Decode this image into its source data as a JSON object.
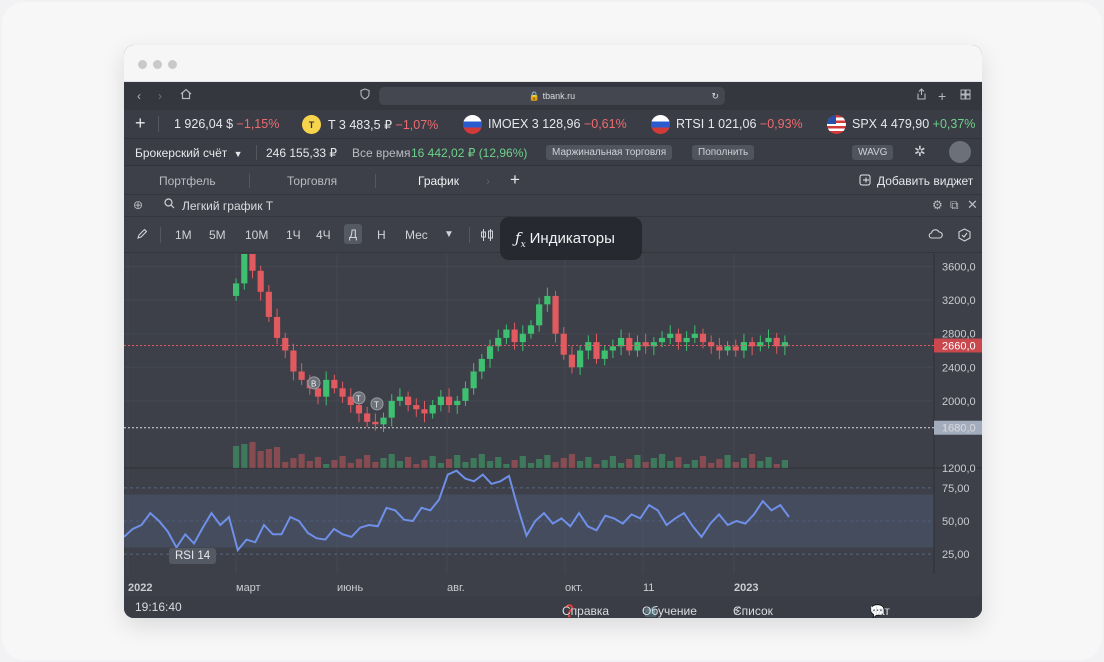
{
  "browser": {
    "url": "tbank.ru"
  },
  "ticker": [
    {
      "name": "",
      "price": "1 926,04 $",
      "change": "−1,15%",
      "dir": "neg"
    },
    {
      "name": "T",
      "price": "3 483,5 ₽",
      "change": "−1,07%",
      "dir": "neg"
    },
    {
      "name": "IMOEX",
      "price": "3 128,96",
      "change": "−0,61%",
      "dir": "neg"
    },
    {
      "name": "RTSI",
      "price": "1 021,06",
      "change": "−0,93%",
      "dir": "neg"
    },
    {
      "name": "SPX",
      "price": "4 479,90",
      "change": "+0,37%",
      "dir": "pos"
    }
  ],
  "account": {
    "name": "Брокерский счёт",
    "balance": "246 155,33 ₽",
    "period_label": "Все время",
    "profit": "16 442,02 ₽ (12,96%)",
    "margin_btn": "Маржинальная торговля",
    "topup_btn": "Пополнить",
    "wavg": "WAVG"
  },
  "tabs": {
    "items": [
      "Портфель",
      "Торговля",
      "График"
    ],
    "active": "График",
    "add_widget": "Добавить виджет"
  },
  "widget": {
    "title": "Легкий график Т"
  },
  "timeframes": {
    "items": [
      "1М",
      "5М",
      "10М",
      "1Ч",
      "4Ч",
      "Д",
      "Н",
      "Мес"
    ],
    "selected": "Д"
  },
  "tooltip": {
    "text": "Индикаторы"
  },
  "chart_data": [
    {
      "type": "candlestick",
      "title": "",
      "ylim": [
        1200,
        3750
      ],
      "y_ticks": [
        "3600,0",
        "3200,0",
        "2800,0",
        "2400,0",
        "2000,0",
        "1680,0",
        "1200,0"
      ],
      "x_ticks": [
        "2022",
        "март",
        "июнь",
        "авг.",
        "окт.",
        "11",
        "2023"
      ],
      "last_price_label": "2660,0",
      "last_price": 2660,
      "crosshair_label": "1680,0",
      "crosshair_price": 1680,
      "markers": [
        "B",
        "T",
        "T"
      ],
      "series": [
        {
          "name": "close",
          "values": [
            3400,
            3750,
            3550,
            3300,
            3000,
            2750,
            2600,
            2350,
            2250,
            2150,
            2050,
            2250,
            2150,
            2050,
            1950,
            1850,
            1750,
            1720,
            1800,
            2000,
            2050,
            1950,
            1900,
            1850,
            1950,
            2050,
            1950,
            2000,
            2150,
            2350,
            2500,
            2650,
            2750,
            2850,
            2700,
            2800,
            2900,
            3150,
            3250,
            2800,
            2550,
            2400,
            2600,
            2700,
            2500,
            2600,
            2650,
            2750,
            2600,
            2700,
            2650,
            2700,
            2750,
            2800,
            2700,
            2750,
            2800,
            2700,
            2650,
            2600,
            2650,
            2600,
            2700,
            2650,
            2700,
            2750,
            2650,
            2700
          ]
        }
      ]
    },
    {
      "type": "line",
      "title": "",
      "ylim": [
        10,
        90
      ],
      "y_ticks": [
        "75,00",
        "50,00",
        "25,00"
      ],
      "series": [
        {
          "name": "RSI 14",
          "values": [
            38,
            44,
            47,
            56,
            50,
            42,
            30,
            40,
            33,
            45,
            56,
            47,
            53,
            28,
            36,
            34,
            47,
            40,
            40,
            53,
            50,
            41,
            37,
            36,
            44,
            40,
            38,
            45,
            47,
            46,
            60,
            58,
            51,
            50,
            60,
            58,
            66,
            85,
            88,
            82,
            80,
            85,
            78,
            80,
            84,
            60,
            39,
            50,
            56,
            48,
            52,
            46,
            56,
            46,
            43,
            54,
            52,
            48,
            55,
            52,
            62,
            58,
            47,
            52,
            56,
            46,
            38,
            48,
            55,
            47,
            50,
            48,
            55,
            65,
            58,
            62,
            53
          ]
        }
      ]
    }
  ],
  "status": {
    "time": "19:16:40",
    "help": "Справка",
    "learn": "Обучение",
    "changes": "Список изменений",
    "support": "Чат поддержки"
  }
}
